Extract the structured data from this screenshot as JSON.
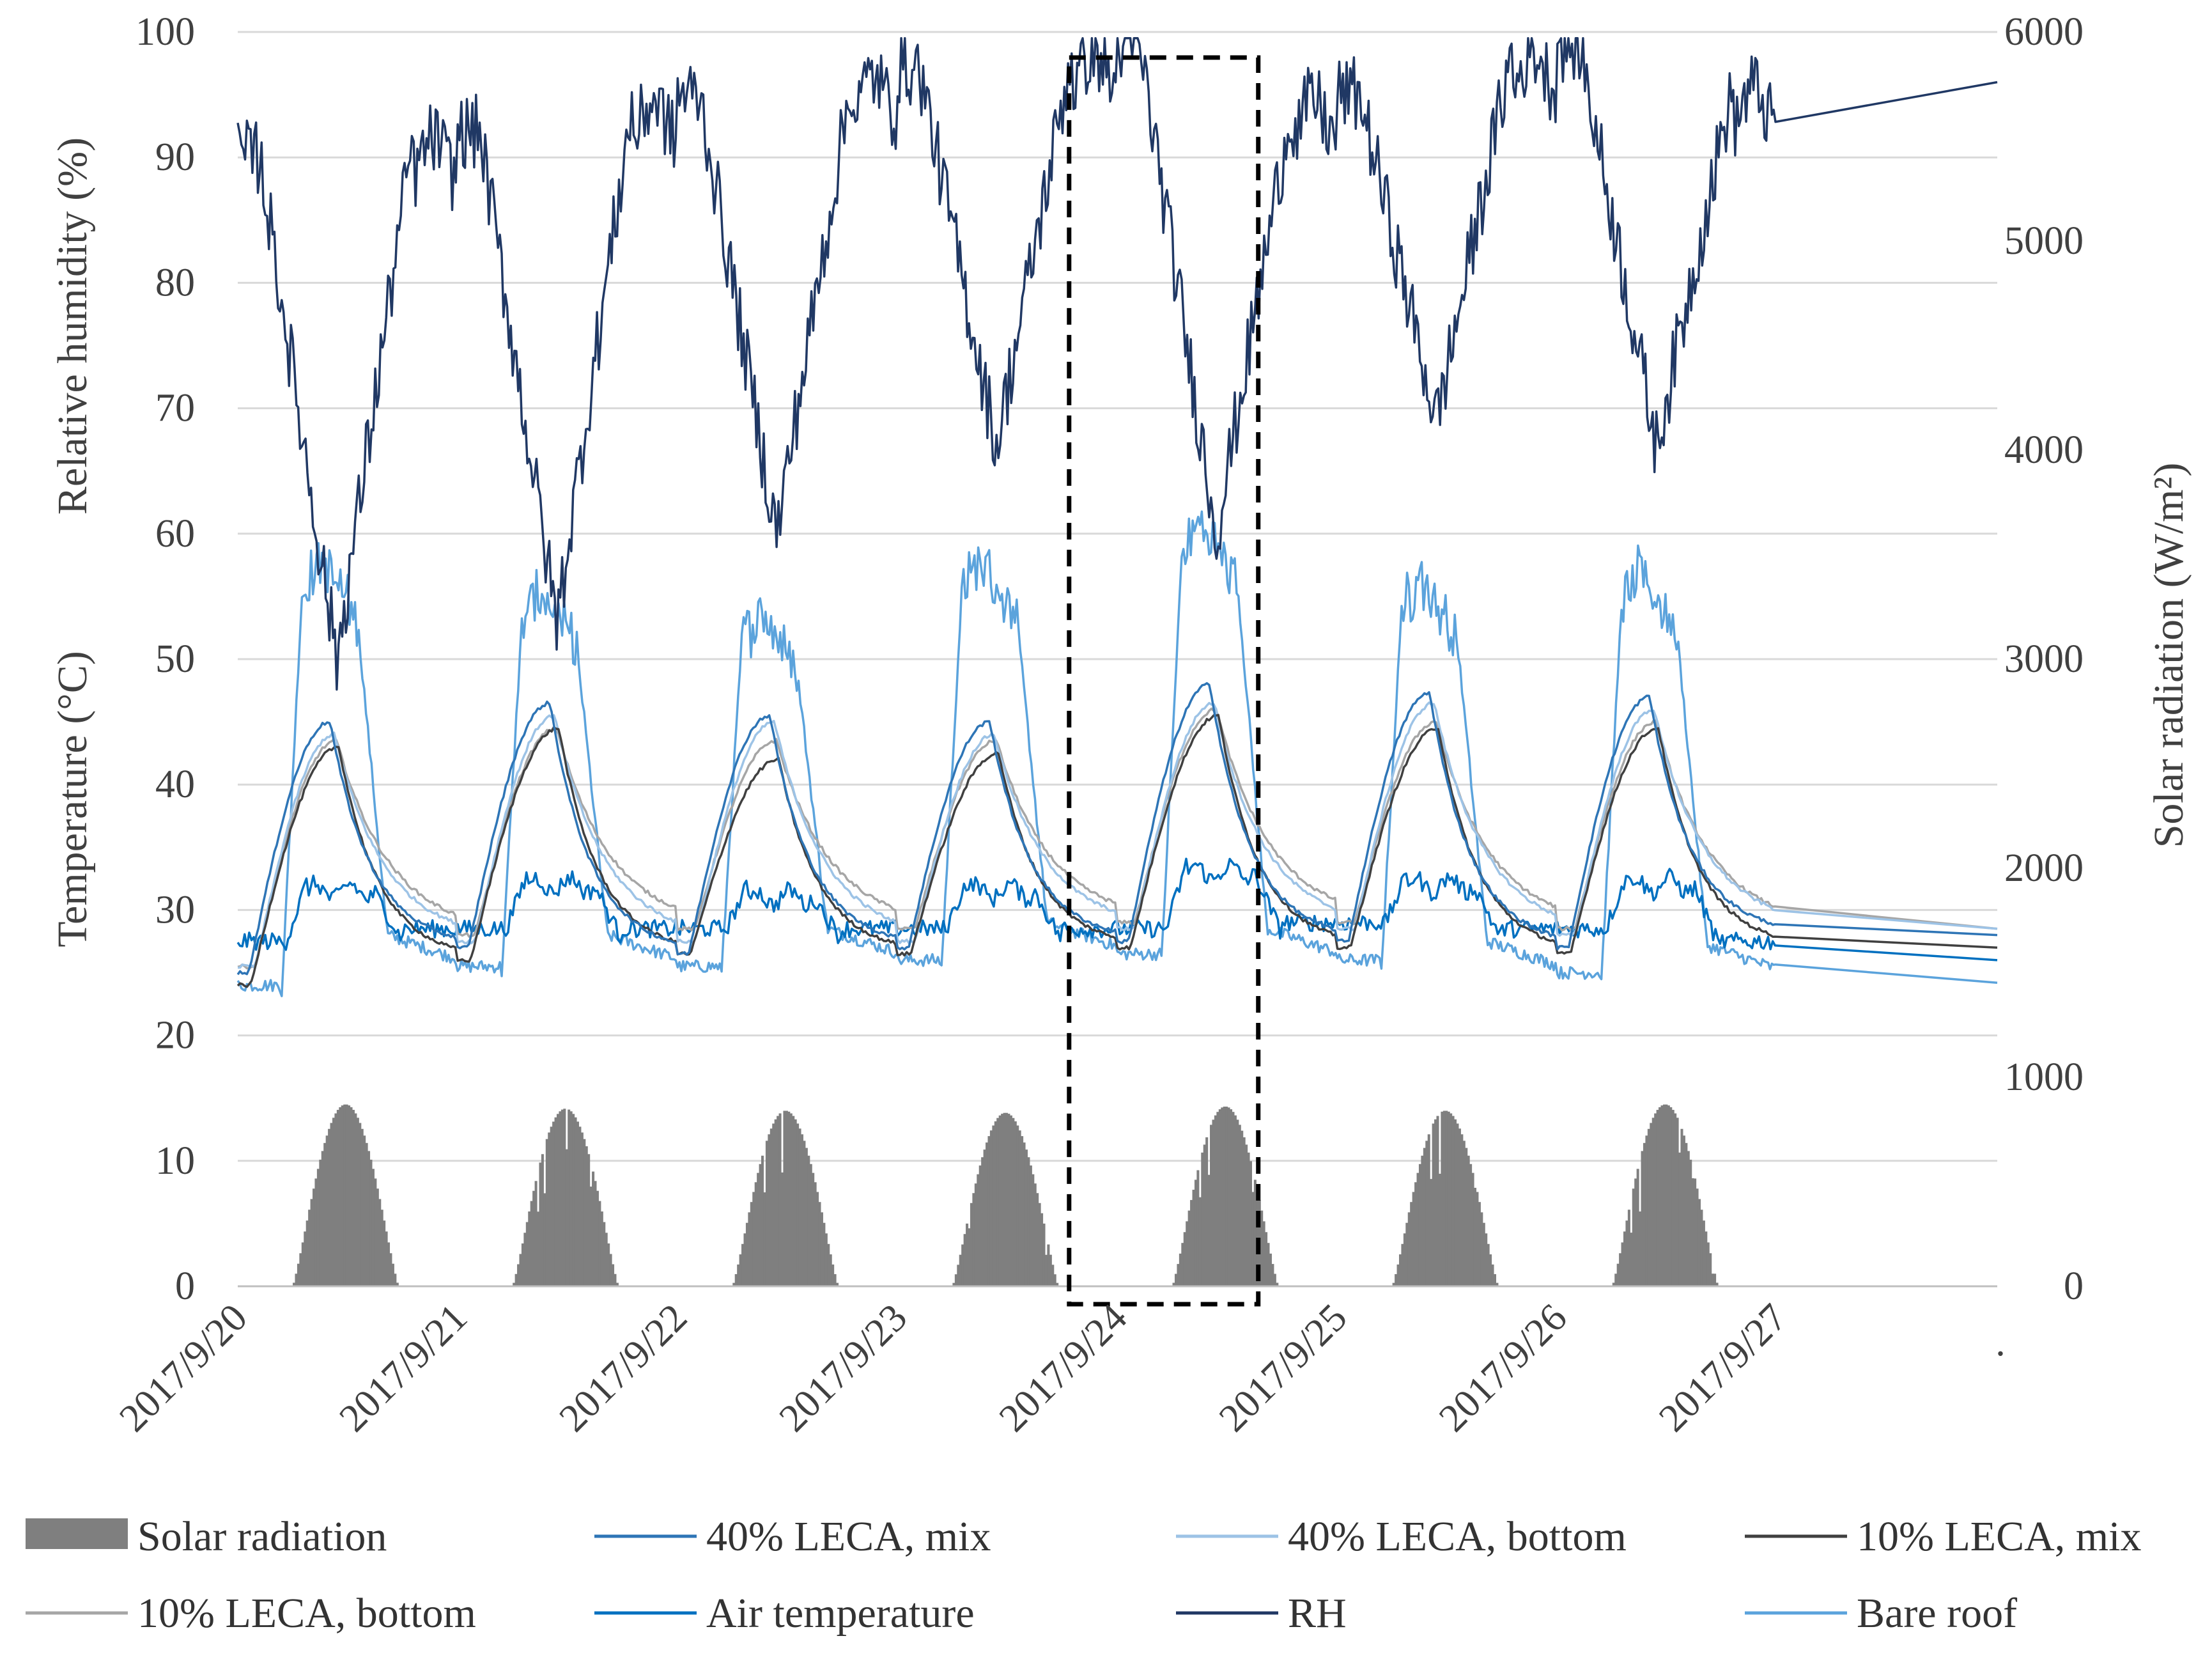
{
  "chart_data": {
    "type": "line",
    "title": "",
    "ylabel_left_top": "Relative humidity  (%)",
    "ylabel_left_bottom": "Temperature (°C)",
    "ylabel_right": "Solar radiation  (W/m²)",
    "ylim_left": [
      0,
      100
    ],
    "ylim_right": [
      0,
      6000
    ],
    "yticks_left": [
      "0",
      "10",
      "20",
      "30",
      "40",
      "50",
      "60",
      "70",
      "80",
      "90",
      "100"
    ],
    "yticks_right": [
      "0",
      "1000",
      "2000",
      "3000",
      "4000",
      "5000",
      "6000"
    ],
    "categories": [
      "2017/9/20",
      "2017/9/21",
      "2017/9/22",
      "2017/9/23",
      "2017/9/24",
      "2017/9/25",
      "2017/9/26",
      "2017/9/27"
    ],
    "x_trailing_label": ".",
    "grid": true,
    "legend_position": "bottom",
    "highlight_box": {
      "x_start_day": 3.78,
      "x_end_day": 4.64,
      "description": "dashed rectangle highlighting 2017/9/24"
    },
    "legend": [
      {
        "name": "Solar radiation",
        "kind": "bar"
      },
      {
        "name": "40% LECA, mix",
        "kind": "line"
      },
      {
        "name": "40% LECA, bottom",
        "kind": "line"
      },
      {
        "name": "10% LECA, mix",
        "kind": "line"
      },
      {
        "name": "10% LECA, bottom",
        "kind": "line"
      },
      {
        "name": "Air temperature",
        "kind": "line"
      },
      {
        "name": "RH",
        "kind": "line"
      },
      {
        "name": "Bare roof",
        "kind": "line"
      }
    ],
    "series": [
      {
        "name": "Solar radiation",
        "axis": "right",
        "color": "#7f7f7f",
        "daily_peak_wm2": [
          870,
          850,
          840,
          830,
          860,
          840,
          870
        ],
        "daylight_window_fraction": [
          0.25,
          0.73
        ]
      },
      {
        "name": "40% LECA, mix",
        "axis": "left",
        "color": "#2e75b6",
        "daily_min_c": [
          25.0,
          27.0,
          26.5,
          27.0,
          27.5,
          27.5,
          27.0,
          28.0
        ],
        "daily_max_c": [
          45.0,
          46.5,
          45.5,
          45.0,
          48.0,
          47.3,
          47.0
        ]
      },
      {
        "name": "40% LECA, bottom",
        "axis": "left",
        "color": "#9dc3e6",
        "daily_min_c": [
          25.5,
          27.5,
          27.5,
          27.5,
          28.5,
          28.5,
          28.0,
          28.5
        ],
        "daily_max_c": [
          44.0,
          45.5,
          45.0,
          44.0,
          46.5,
          46.5,
          46.0
        ]
      },
      {
        "name": "10% LECA, mix",
        "axis": "left",
        "color": "#404040",
        "daily_min_c": [
          24.0,
          26.0,
          26.5,
          26.5,
          27.0,
          27.0,
          26.5,
          27.0
        ],
        "daily_max_c": [
          43.0,
          44.5,
          42.0,
          42.5,
          45.5,
          44.5,
          44.5
        ]
      },
      {
        "name": "10% LECA, bottom",
        "axis": "left",
        "color": "#a6a6a6",
        "daily_min_c": [
          25.5,
          28.0,
          28.5,
          28.5,
          29.0,
          29.0,
          28.5,
          28.5
        ],
        "daily_max_c": [
          43.5,
          44.5,
          43.5,
          43.5,
          46.0,
          45.0,
          45.0
        ]
      },
      {
        "name": "Air temperature",
        "axis": "left",
        "color": "#0070c0",
        "daily_min_c": [
          26.0,
          27.0,
          27.0,
          27.0,
          27.0,
          27.5,
          27.0,
          26.0
        ],
        "daily_max_c": [
          32.5,
          33.0,
          32.0,
          32.5,
          34.0,
          33.0,
          33.0
        ]
      },
      {
        "name": "RH",
        "axis": "left",
        "color": "#203864",
        "daily_min_pct": [
          50,
          53,
          60,
          67,
          60,
          69,
          67
        ],
        "daily_max_pct": [
          90,
          92,
          95,
          97,
          99,
          95,
          99,
          96
        ]
      },
      {
        "name": "Bare roof",
        "axis": "left",
        "color": "#5ba3dc",
        "daily_min_c": [
          23.5,
          25.0,
          25.0,
          25.5,
          26.0,
          25.5,
          24.5,
          24.2
        ],
        "daily_max_c": [
          58.0,
          55.5,
          54.0,
          58.0,
          61.0,
          56.5,
          57.0
        ]
      }
    ]
  }
}
